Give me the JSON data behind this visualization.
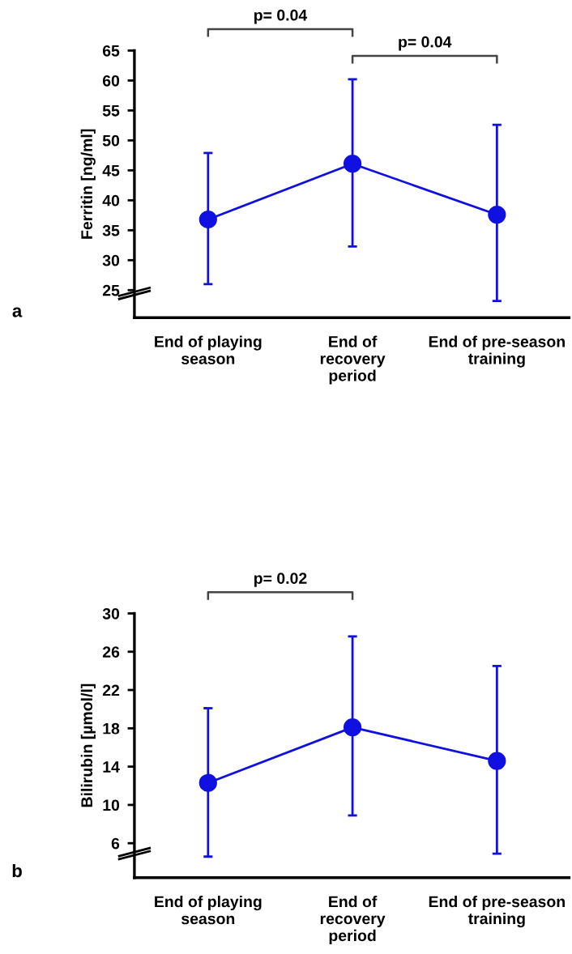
{
  "chart_data": [
    {
      "type": "line",
      "ylabel": "Ferritin [ng/ml]",
      "categories": [
        "End of playing\nseason",
        "End of\nrecovery\nperiod",
        "End of pre-season\ntraining"
      ],
      "series": [
        {
          "color": "#1010e0",
          "values": [
            36.8,
            46.1,
            37.6
          ],
          "errors": [
            [
              26.0,
              47.9
            ],
            [
              32.3,
              60.2
            ],
            [
              23.2,
              52.6
            ]
          ]
        }
      ],
      "ylim": [
        20.4,
        65
      ],
      "yticks": [
        25,
        30,
        35,
        40,
        45,
        50,
        55,
        60,
        65
      ],
      "marker": "circle",
      "line_style": "solid",
      "grid": false,
      "annotations": [
        "a",
        "p= 0.04",
        "p= 0.04"
      ]
    },
    {
      "type": "line",
      "ylabel": "Bilirubin [µmol/l]",
      "categories": [
        "End of playing\nseason",
        "End of\nrecovery\nperiod",
        "End of pre-season\ntraining"
      ],
      "series": [
        {
          "color": "#1010e0",
          "values": [
            12.3,
            18.1,
            14.6
          ],
          "errors": [
            [
              4.6,
              20.1
            ],
            [
              8.9,
              27.6
            ],
            [
              4.9,
              24.5
            ]
          ]
        }
      ],
      "ylim": [
        2.4,
        30
      ],
      "yticks": [
        6,
        10,
        14,
        18,
        22,
        26,
        30
      ],
      "marker": "circle",
      "line_style": "solid",
      "grid": false,
      "annotations": [
        "b",
        "p= 0.02"
      ]
    }
  ]
}
